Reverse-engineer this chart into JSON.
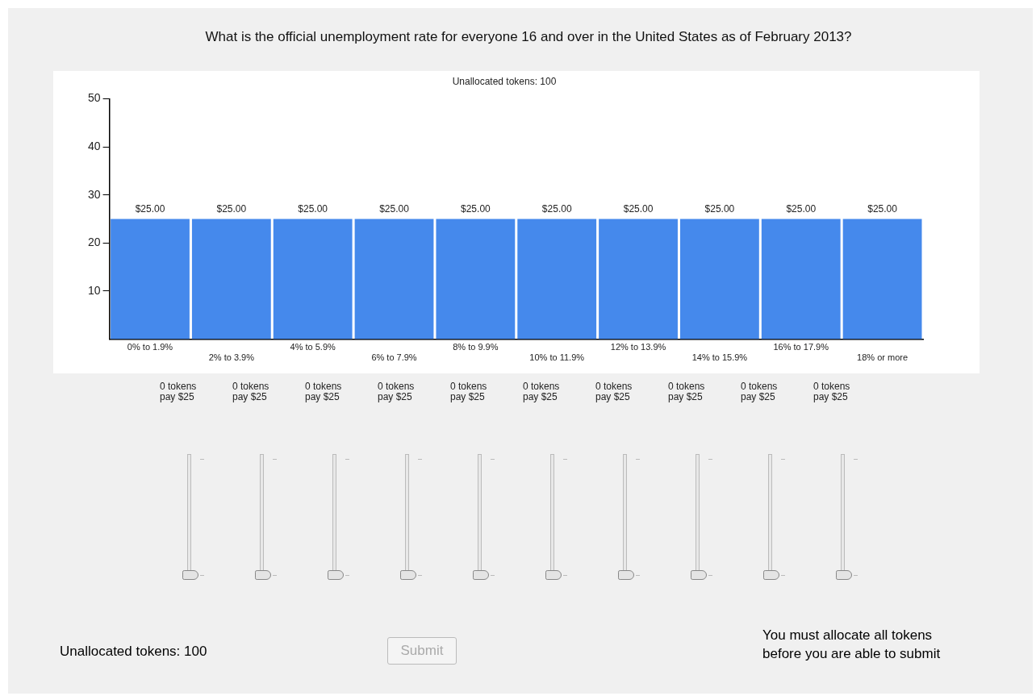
{
  "chart_data": {
    "type": "bar",
    "title": "What is the official unemployment rate for everyone 16 and over in the United States as of February 2013?",
    "subtitle": "Unallocated tokens: 100",
    "categories": [
      "0% to 1.9%",
      "2% to 3.9%",
      "4% to 5.9%",
      "6% to 7.9%",
      "8% to 9.9%",
      "10% to 11.9%",
      "12% to 13.9%",
      "14% to 15.9%",
      "16% to 17.9%",
      "18% or more"
    ],
    "values": [
      25,
      25,
      25,
      25,
      25,
      25,
      25,
      25,
      25,
      25
    ],
    "value_labels": [
      "$25.00",
      "$25.00",
      "$25.00",
      "$25.00",
      "$25.00",
      "$25.00",
      "$25.00",
      "$25.00",
      "$25.00",
      "$25.00"
    ],
    "color": "#4589ec",
    "ylim": [
      0,
      50
    ],
    "yticks": [
      10,
      20,
      30,
      40,
      50
    ],
    "grid": false,
    "legend": false,
    "annotations": [
      "0 tokens\npay $25",
      "0 tokens\npay $25",
      "0 tokens\npay $25",
      "0 tokens\npay $25",
      "0 tokens\npay $25",
      "0 tokens\npay $25",
      "0 tokens\npay $25",
      "0 tokens\npay $25",
      "0 tokens\npay $25",
      "0 tokens\npay $25",
      "Unallocated tokens: 100",
      "Submit",
      "You must allocate all tokens\nbefore you are able to submit"
    ]
  }
}
